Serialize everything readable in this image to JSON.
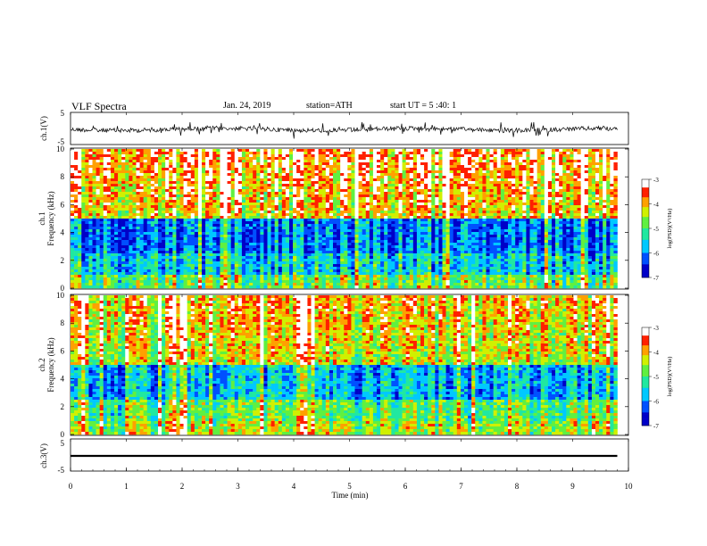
{
  "header": {
    "title": "VLF  Spectra",
    "date": "Jan. 24, 2019",
    "station": "station=ATH",
    "start_ut": "start  UT  =   5  :40: 1"
  },
  "chart_data": [
    {
      "type": "line",
      "name": "ch1-waveform",
      "ylabel": "ch.1(V)",
      "ylim": [
        -5,
        5
      ],
      "yticks": [
        "5",
        "-5"
      ],
      "x": [
        0,
        9.8
      ],
      "values_description_skip": null
    },
    {
      "type": "heatmap",
      "name": "ch1-spectrogram",
      "ylabel": "ch.1 Frequency (kHz)",
      "ylim": [
        0,
        10
      ],
      "yticks": [
        "10",
        "8",
        "6",
        "4",
        "2",
        "0"
      ],
      "colorbar": {
        "label": "log(PSD)(V²/Hz)",
        "ticks": [
          "-3",
          "-4",
          "-5",
          "-6",
          "-7"
        ],
        "range": [
          -7,
          -3
        ]
      }
    },
    {
      "type": "heatmap",
      "name": "ch2-spectrogram",
      "ylabel": "ch.2 Frequency (kHz)",
      "ylim": [
        0,
        10
      ],
      "yticks": [
        "10",
        "8",
        "6",
        "4",
        "2",
        "0"
      ],
      "colorbar": {
        "label": "log(PSD)(V²/Hz)",
        "ticks": [
          "-3",
          "-4",
          "-5",
          "-6",
          "-7"
        ],
        "range": [
          -7,
          -3
        ]
      }
    },
    {
      "type": "line",
      "name": "ch3-waveform",
      "ylabel": "ch.3(V)",
      "ylim": [
        -5,
        5
      ],
      "yticks": [
        "5",
        "-5"
      ]
    }
  ],
  "xaxis": {
    "label": "Time  (min)",
    "ticks": [
      "0",
      "1",
      "2",
      "3",
      "4",
      "5",
      "6",
      "7",
      "8",
      "9",
      "10"
    ],
    "xlim": [
      0,
      10
    ],
    "data_end": 9.8
  },
  "labels": {
    "ch1_v": "ch.1(V)",
    "ch3_v": "ch.3(V)",
    "ch1_freq": "ch.1",
    "ch2_freq": "ch.2",
    "freq_unit": "Frequency  (kHz)",
    "cbar": "log(PSD)(V²/Hz)",
    "five": "5",
    "minus_five": "-5"
  }
}
